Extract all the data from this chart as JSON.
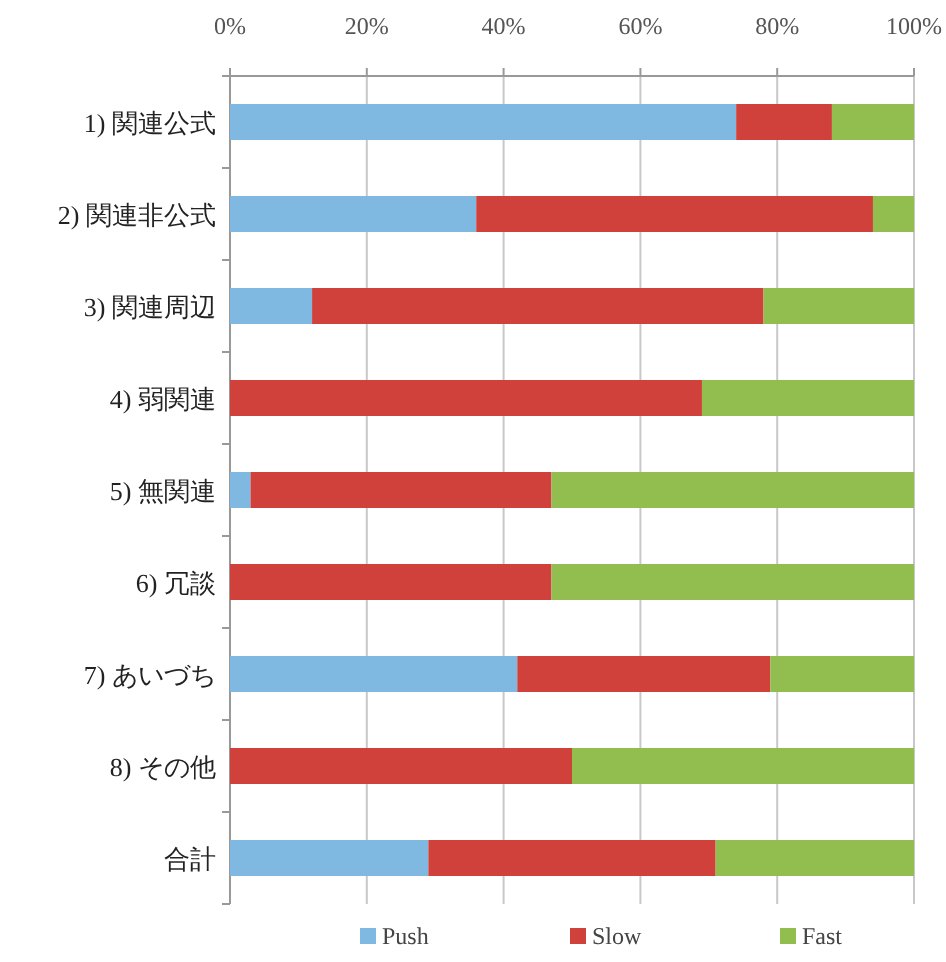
{
  "chart_data": {
    "type": "bar",
    "orientation": "horizontal",
    "stacked": true,
    "categories": [
      "1) 関連公式",
      "2) 関連非公式",
      "3) 関連周辺",
      "4) 弱関連",
      "5) 無関連",
      "6) 冗談",
      "7) あいづち",
      "8) その他",
      "合計"
    ],
    "series": [
      {
        "name": "Push",
        "color": "#7fb8e0",
        "values": [
          74,
          36,
          12,
          0,
          3,
          0,
          42,
          0,
          29
        ]
      },
      {
        "name": "Slow",
        "color": "#d0413c",
        "values": [
          14,
          58,
          66,
          69,
          44,
          47,
          37,
          50,
          42
        ]
      },
      {
        "name": "Fast",
        "color": "#92bd4f",
        "values": [
          12,
          6,
          22,
          31,
          53,
          53,
          21,
          50,
          29
        ]
      }
    ],
    "xlim": [
      0,
      100
    ],
    "xticks": [
      {
        "value": 0,
        "label": "0%"
      },
      {
        "value": 20,
        "label": "20%"
      },
      {
        "value": 40,
        "label": "40%"
      },
      {
        "value": 60,
        "label": "60%"
      },
      {
        "value": 80,
        "label": "80%"
      },
      {
        "value": 100,
        "label": "100%"
      }
    ],
    "grid": "x",
    "legend": "bottom"
  }
}
